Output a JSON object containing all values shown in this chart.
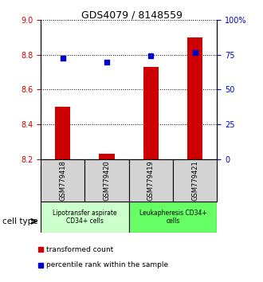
{
  "title": "GDS4079 / 8148559",
  "samples": [
    "GSM779418",
    "GSM779420",
    "GSM779419",
    "GSM779421"
  ],
  "transformed_counts": [
    8.5,
    8.23,
    8.73,
    8.9
  ],
  "percentile_ranks": [
    72.5,
    69.5,
    74.0,
    76.5
  ],
  "ylim_left": [
    8.2,
    9.0
  ],
  "ylim_right": [
    0,
    100
  ],
  "yticks_left": [
    8.2,
    8.4,
    8.6,
    8.8,
    9.0
  ],
  "yticks_right": [
    0,
    25,
    50,
    75,
    100
  ],
  "ytick_labels_right": [
    "0",
    "25",
    "50",
    "75",
    "100%"
  ],
  "bar_color": "#cc0000",
  "dot_color": "#0000cc",
  "bar_bottom": 8.2,
  "cell_types": [
    {
      "label": "Lipotransfer aspirate\nCD34+ cells",
      "color": "#ccffcc",
      "samples": [
        0,
        1
      ]
    },
    {
      "label": "Leukapheresis CD34+\ncells",
      "color": "#66ff66",
      "samples": [
        2,
        3
      ]
    }
  ],
  "legend_red_label": "transformed count",
  "legend_blue_label": "percentile rank within the sample",
  "cell_type_label": "cell type",
  "tick_color_left": "#cc0000",
  "tick_color_right": "#0000cc",
  "sample_box_color": "#d3d3d3",
  "bar_width": 0.35
}
